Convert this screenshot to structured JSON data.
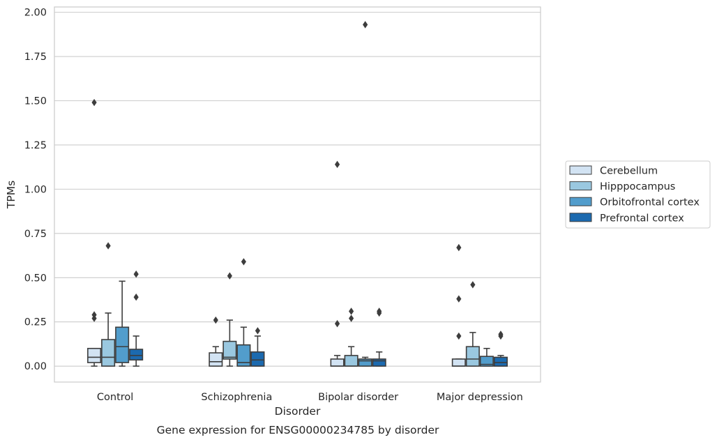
{
  "caption": "Gene expression for ENSG00000234785 by disorder",
  "chart_data": {
    "type": "box",
    "xlabel": "Disorder",
    "ylabel": "TPMs",
    "ylim": [
      -0.09,
      2.03
    ],
    "yticks": [
      "0.00",
      "0.25",
      "0.50",
      "0.75",
      "1.00",
      "1.25",
      "1.50",
      "1.75",
      "2.00"
    ],
    "grid": "horizontal",
    "legend_position": "right",
    "categories": [
      "Control",
      "Schizophrenia",
      "Bipolar disorder",
      "Major depression"
    ],
    "series": [
      {
        "name": "Cerebellum",
        "color": "#d2e3f3",
        "boxes": [
          {
            "whislo": 0.0,
            "q1": 0.02,
            "med": 0.05,
            "q3": 0.1,
            "whishi": 0.1,
            "fliers": [
              0.27,
              0.29,
              1.49
            ]
          },
          {
            "whislo": 0.0,
            "q1": 0.0,
            "med": 0.025,
            "q3": 0.075,
            "whishi": 0.11,
            "fliers": [
              0.26
            ]
          },
          {
            "whislo": 0.0,
            "q1": 0.0,
            "med": 0.0,
            "q3": 0.04,
            "whishi": 0.06,
            "fliers": [
              0.24,
              1.14
            ]
          },
          {
            "whislo": 0.0,
            "q1": 0.0,
            "med": 0.0,
            "q3": 0.04,
            "whishi": 0.04,
            "fliers": [
              0.17,
              0.38,
              0.67
            ]
          }
        ]
      },
      {
        "name": "Hipppocampus",
        "color": "#9ac8e0",
        "boxes": [
          {
            "whislo": 0.0,
            "q1": 0.0,
            "med": 0.05,
            "q3": 0.15,
            "whishi": 0.3,
            "fliers": [
              0.68
            ]
          },
          {
            "whislo": 0.0,
            "q1": 0.04,
            "med": 0.05,
            "q3": 0.14,
            "whishi": 0.26,
            "fliers": [
              0.51
            ]
          },
          {
            "whislo": 0.0,
            "q1": 0.0,
            "med": 0.0,
            "q3": 0.06,
            "whishi": 0.11,
            "fliers": [
              0.27,
              0.31
            ]
          },
          {
            "whislo": 0.0,
            "q1": 0.0,
            "med": 0.04,
            "q3": 0.11,
            "whishi": 0.19,
            "fliers": [
              0.46
            ]
          }
        ]
      },
      {
        "name": "Orbitofrontal cortex",
        "color": "#529dcc",
        "boxes": [
          {
            "whislo": 0.0,
            "q1": 0.02,
            "med": 0.11,
            "q3": 0.22,
            "whishi": 0.48,
            "fliers": []
          },
          {
            "whislo": 0.0,
            "q1": 0.0,
            "med": 0.02,
            "q3": 0.12,
            "whishi": 0.22,
            "fliers": [
              0.59
            ]
          },
          {
            "whislo": 0.0,
            "q1": 0.0,
            "med": 0.03,
            "q3": 0.04,
            "whishi": 0.05,
            "fliers": [
              1.93
            ]
          },
          {
            "whislo": 0.0,
            "q1": 0.0,
            "med": 0.01,
            "q3": 0.055,
            "whishi": 0.1,
            "fliers": []
          }
        ]
      },
      {
        "name": "Prefrontal cortex",
        "color": "#1c6aaf",
        "boxes": [
          {
            "whislo": 0.0,
            "q1": 0.035,
            "med": 0.06,
            "q3": 0.095,
            "whishi": 0.17,
            "fliers": [
              0.39,
              0.52
            ]
          },
          {
            "whislo": 0.0,
            "q1": 0.0,
            "med": 0.035,
            "q3": 0.08,
            "whishi": 0.17,
            "fliers": [
              0.2
            ]
          },
          {
            "whislo": 0.0,
            "q1": 0.0,
            "med": 0.03,
            "q3": 0.04,
            "whishi": 0.08,
            "fliers": [
              0.3,
              0.31
            ]
          },
          {
            "whislo": 0.0,
            "q1": 0.0,
            "med": 0.02,
            "q3": 0.05,
            "whishi": 0.06,
            "fliers": [
              0.17,
              0.18
            ]
          }
        ]
      }
    ]
  }
}
